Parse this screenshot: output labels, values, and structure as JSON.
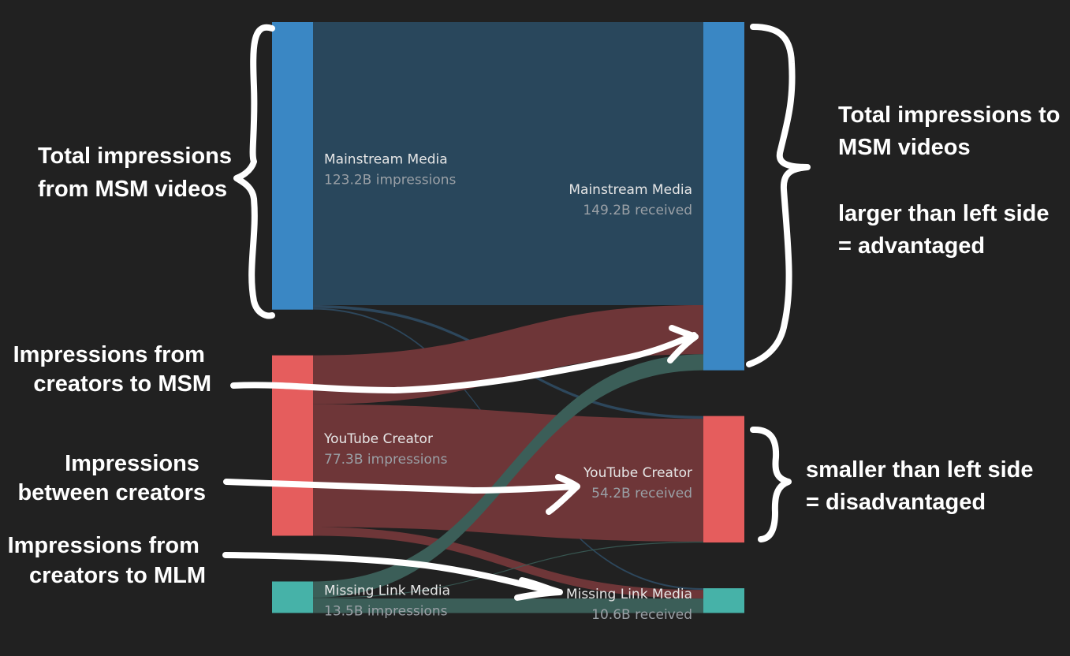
{
  "chart_data": {
    "type": "sankey",
    "colors": {
      "background": "#212121",
      "Mainstream Media": "#3a87c4",
      "YouTube Creator": "#e55d5d",
      "Missing Link Media": "#46b2a8",
      "flow_msm_self": "#29475c",
      "flow_creator": "#6e3638",
      "flow_mlm": "#3b5e58",
      "flow_thin": "#2f4d66"
    },
    "sources": [
      {
        "name": "Mainstream Media",
        "value_label": "123.2B impressions",
        "value": 123.2
      },
      {
        "name": "YouTube Creator",
        "value_label": "77.3B impressions",
        "value": 77.3
      },
      {
        "name": "Missing Link Media",
        "value_label": "13.5B impressions",
        "value": 13.5
      }
    ],
    "targets": [
      {
        "name": "Mainstream Media",
        "value_label": "149.2B received",
        "value": 149.2
      },
      {
        "name": "YouTube Creator",
        "value_label": "54.2B received",
        "value": 54.2
      },
      {
        "name": "Missing Link Media",
        "value_label": "10.6B received",
        "value": 10.6
      }
    ],
    "flows": [
      {
        "from": "Mainstream Media",
        "to": "Mainstream Media",
        "value": 121.3
      },
      {
        "from": "Mainstream Media",
        "to": "YouTube Creator",
        "value": 1.2
      },
      {
        "from": "Mainstream Media",
        "to": "Missing Link Media",
        "value": 0.7
      },
      {
        "from": "YouTube Creator",
        "to": "Mainstream Media",
        "value": 21.0
      },
      {
        "from": "YouTube Creator",
        "to": "YouTube Creator",
        "value": 52.6
      },
      {
        "from": "YouTube Creator",
        "to": "Missing Link Media",
        "value": 3.7
      },
      {
        "from": "Missing Link Media",
        "to": "Mainstream Media",
        "value": 6.9
      },
      {
        "from": "Missing Link Media",
        "to": "YouTube Creator",
        "value": 0.4
      },
      {
        "from": "Missing Link Media",
        "to": "Missing Link Media",
        "value": 6.2
      }
    ]
  },
  "annotations": {
    "left_msm": [
      "Total impressions",
      "from MSM videos"
    ],
    "creators_to_msm": [
      "Impressions from",
      "creators to MSM"
    ],
    "between_creators": [
      "Impressions",
      "between creators"
    ],
    "creators_to_mlm": [
      "Impressions from",
      "creators to MLM"
    ],
    "right_msm": [
      "Total impressions to",
      "MSM videos",
      "",
      "larger than left side",
      "= advantaged"
    ],
    "right_creator": [
      "smaller than left side",
      "= disadvantaged"
    ]
  }
}
